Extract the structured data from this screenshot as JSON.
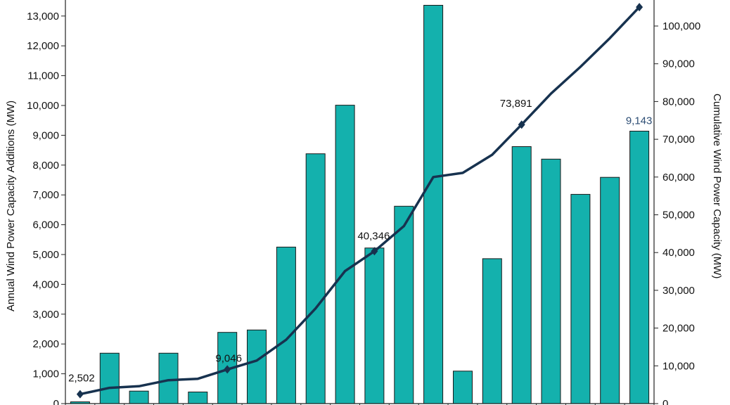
{
  "colors": {
    "bar": "#14b1ad",
    "bar_stroke": "#1a1a1a",
    "line": "#17324f",
    "marker": "#17324f",
    "label_highlight": "#2c4d74",
    "axis": "#222222",
    "text": "#111111"
  },
  "chart_data": {
    "type": "bar",
    "title": "",
    "xlabel": "",
    "ylabel": "Annual Wind Power Capacity Additions (MW)",
    "y2label": "Cumulative Wind Power Capacity (MW)",
    "ylim": [
      0,
      13000
    ],
    "y2lim": [
      0,
      104000
    ],
    "yticks": [
      0,
      1000,
      2000,
      3000,
      4000,
      5000,
      6000,
      7000,
      8000,
      9000,
      10000,
      11000,
      12000,
      13000
    ],
    "ytick_labels": [
      "0",
      "1,000",
      "2,000",
      "3,000",
      "4,000",
      "5,000",
      "6,000",
      "7,000",
      "8,000",
      "9,000",
      "10,000",
      "11,000",
      "12,000",
      "13,000"
    ],
    "y2ticks": [
      0,
      10000,
      20000,
      30000,
      40000,
      50000,
      60000,
      70000,
      80000,
      90000,
      100000
    ],
    "y2tick_labels": [
      "0",
      "10,000",
      "20,000",
      "30,000",
      "40,000",
      "50,000",
      "60,000",
      "70,000",
      "80,000",
      "90,000",
      "100,000"
    ],
    "grid": false,
    "series": [
      {
        "type": "bar",
        "axis": "left",
        "values": [
          60,
          1690,
          420,
          1690,
          390,
          2390,
          2470,
          5250,
          8380,
          10010,
          5220,
          6620,
          13360,
          1090,
          4860,
          8620,
          8200,
          7020,
          7590,
          9140
        ]
      },
      {
        "type": "line",
        "axis": "right",
        "values": [
          2502,
          4180,
          4600,
          6200,
          6580,
          9046,
          11400,
          16900,
          25200,
          35100,
          40346,
          47000,
          60000,
          61100,
          65900,
          73891,
          82100,
          89200,
          96800,
          105000
        ],
        "marked_points": [
          0,
          5,
          10,
          15,
          19
        ]
      }
    ],
    "annotations": [
      {
        "index": 0,
        "text": "2,502",
        "series": "cumulative"
      },
      {
        "index": 5,
        "text": "9,046",
        "series": "cumulative"
      },
      {
        "index": 10,
        "text": "40,346",
        "series": "cumulative"
      },
      {
        "index": 15,
        "text": "73,891",
        "series": "cumulative"
      },
      {
        "index": 19,
        "text": "9,143",
        "series": "annual"
      }
    ]
  }
}
